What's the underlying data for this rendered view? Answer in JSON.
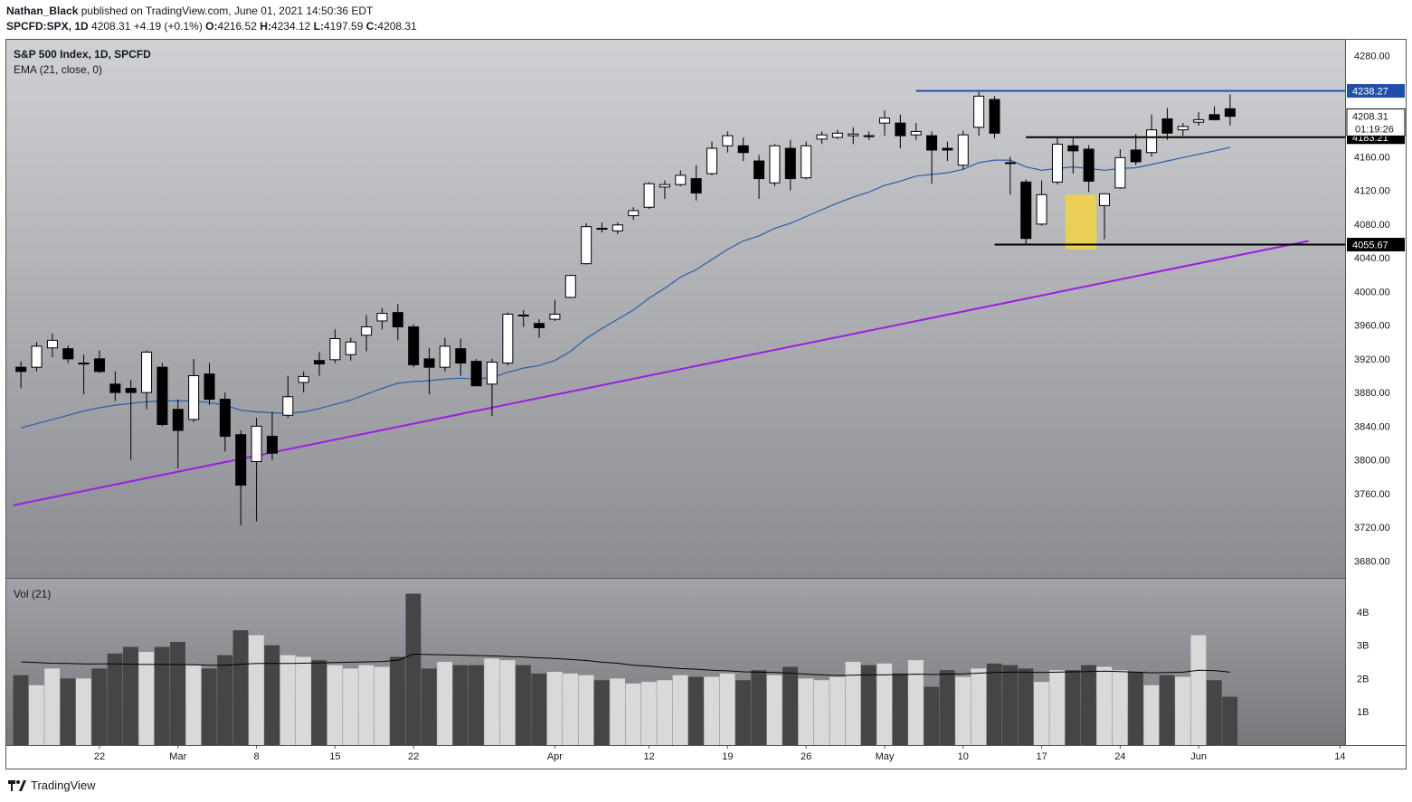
{
  "header": {
    "author": "Nathan_Black",
    "published_text": "published on TradingView.com, June 01, 2021 14:50:36 EDT",
    "symbol_line": "SPCFD:SPX, 1D",
    "last": "4208.31",
    "change": "+4.19 (+0.1%)",
    "o_label": "O:",
    "o": "4216.52",
    "h_label": "H:",
    "h": "4234.12",
    "l_label": "L:",
    "l": "4197.59",
    "c_label": "C:",
    "c": "4208.31"
  },
  "legend": {
    "title": "S&P 500 Index, 1D, SPCFD",
    "ema": "EMA (21, close, 0)",
    "vol": "Vol (21)"
  },
  "footer": {
    "brand": "TradingView"
  },
  "colors": {
    "up_body": "#ffffff",
    "down_body": "#000000",
    "wick": "#000000",
    "ema": "#2a5ea8",
    "trendline": "#9b1fe0",
    "resistance": "#1f4fa8",
    "highlight": "#f0d24a",
    "vol_down": "#454545",
    "vol_up": "#d9d9d9"
  },
  "chart_data": {
    "type": "candlestick",
    "title": "S&P 500 Index, 1D, SPCFD",
    "ylim": [
      3660,
      4300
    ],
    "y_ticks": [
      "4280.00",
      "4240.00",
      "4200.00",
      "4160.00",
      "4120.00",
      "4080.00",
      "4040.00",
      "4000.00",
      "3960.00",
      "3920.00",
      "3880.00",
      "3840.00",
      "3800.00",
      "3760.00",
      "3720.00",
      "3680.00"
    ],
    "x_ticks": [
      {
        "label": "22",
        "i": 5
      },
      {
        "label": "Mar",
        "i": 10
      },
      {
        "label": "8",
        "i": 15
      },
      {
        "label": "15",
        "i": 20
      },
      {
        "label": "22",
        "i": 25
      },
      {
        "label": "Apr",
        "i": 34
      },
      {
        "label": "12",
        "i": 40
      },
      {
        "label": "19",
        "i": 45
      },
      {
        "label": "26",
        "i": 50
      },
      {
        "label": "May",
        "i": 55
      },
      {
        "label": "10",
        "i": 60
      },
      {
        "label": "17",
        "i": 65
      },
      {
        "label": "24",
        "i": 70
      },
      {
        "label": "Jun",
        "i": 75
      },
      {
        "label": "14",
        "i": 84
      }
    ],
    "ohlc": [
      [
        3910,
        3917,
        3885,
        3905
      ],
      [
        3910,
        3940,
        3905,
        3935
      ],
      [
        3933,
        3950,
        3922,
        3942
      ],
      [
        3932,
        3936,
        3915,
        3920
      ],
      [
        3915,
        3925,
        3878,
        3915
      ],
      [
        3920,
        3930,
        3903,
        3905
      ],
      [
        3890,
        3905,
        3870,
        3880
      ],
      [
        3885,
        3895,
        3800,
        3880
      ],
      [
        3880,
        3930,
        3860,
        3928
      ],
      [
        3910,
        3915,
        3840,
        3842
      ],
      [
        3860,
        3872,
        3790,
        3835
      ],
      [
        3848,
        3920,
        3845,
        3900
      ],
      [
        3902,
        3915,
        3865,
        3872
      ],
      [
        3872,
        3880,
        3810,
        3828
      ],
      [
        3830,
        3835,
        3722,
        3770
      ],
      [
        3798,
        3850,
        3727,
        3840
      ],
      [
        3828,
        3857,
        3800,
        3808
      ],
      [
        3853,
        3900,
        3850,
        3875
      ],
      [
        3892,
        3905,
        3880,
        3899
      ],
      [
        3918,
        3928,
        3900,
        3914
      ],
      [
        3919,
        3955,
        3915,
        3944
      ],
      [
        3925,
        3945,
        3918,
        3940
      ],
      [
        3948,
        3972,
        3929,
        3958
      ],
      [
        3965,
        3980,
        3955,
        3974
      ],
      [
        3975,
        3985,
        3942,
        3958
      ],
      [
        3958,
        3961,
        3910,
        3913
      ],
      [
        3920,
        3933,
        3878,
        3910
      ],
      [
        3910,
        3945,
        3905,
        3935
      ],
      [
        3932,
        3944,
        3900,
        3915
      ],
      [
        3917,
        3920,
        3888,
        3888
      ],
      [
        3890,
        3920,
        3852,
        3916
      ],
      [
        3915,
        3975,
        3912,
        3973
      ],
      [
        3972,
        3978,
        3958,
        3971
      ],
      [
        3962,
        3967,
        3945,
        3957
      ],
      [
        3967,
        3990,
        3965,
        3973
      ],
      [
        3993,
        4020,
        3992,
        4019
      ],
      [
        4033,
        4081,
        4032,
        4077
      ],
      [
        4075,
        4082,
        4070,
        4074
      ],
      [
        4072,
        4082,
        4068,
        4079
      ],
      [
        4090,
        4100,
        4085,
        4096
      ],
      [
        4100,
        4130,
        4098,
        4128
      ],
      [
        4124,
        4132,
        4110,
        4127
      ],
      [
        4127,
        4144,
        4125,
        4138
      ],
      [
        4134,
        4150,
        4108,
        4117
      ],
      [
        4140,
        4178,
        4138,
        4170
      ],
      [
        4173,
        4190,
        4165,
        4185
      ],
      [
        4173,
        4183,
        4155,
        4165
      ],
      [
        4155,
        4162,
        4110,
        4134
      ],
      [
        4129,
        4175,
        4125,
        4173
      ],
      [
        4170,
        4180,
        4120,
        4134
      ],
      [
        4135,
        4178,
        4133,
        4173
      ],
      [
        4181,
        4190,
        4175,
        4186
      ],
      [
        4183,
        4192,
        4181,
        4188
      ],
      [
        4185,
        4195,
        4175,
        4187
      ],
      [
        4185,
        4190,
        4180,
        4184
      ],
      [
        4200,
        4215,
        4185,
        4206
      ],
      [
        4200,
        4210,
        4170,
        4185
      ],
      [
        4186,
        4200,
        4180,
        4190
      ],
      [
        4185,
        4190,
        4128,
        4168
      ],
      [
        4170,
        4178,
        4155,
        4168
      ],
      [
        4150,
        4191,
        4145,
        4186
      ],
      [
        4195,
        4237,
        4185,
        4232
      ],
      [
        4228,
        4232,
        4182,
        4188
      ],
      [
        4153,
        4160,
        4115,
        4152
      ],
      [
        4130,
        4133,
        4056,
        4063
      ],
      [
        4080,
        4132,
        4078,
        4115
      ],
      [
        4130,
        4183,
        4127,
        4175
      ],
      [
        4173,
        4182,
        4140,
        4167
      ],
      [
        4169,
        4174,
        4118,
        4131
      ],
      [
        4102,
        4115,
        4062,
        4116
      ],
      [
        4123,
        4169,
        4122,
        4159
      ],
      [
        4168,
        4187,
        4150,
        4154
      ],
      [
        4165,
        4210,
        4160,
        4192
      ],
      [
        4205,
        4218,
        4180,
        4188
      ],
      [
        4192,
        4200,
        4185,
        4196
      ],
      [
        4201,
        4213,
        4197,
        4204
      ],
      [
        4210,
        4220,
        4204,
        4204
      ],
      [
        4217,
        4234,
        4197,
        4208
      ]
    ],
    "ema_21": [
      3838,
      3843,
      3848,
      3853,
      3858,
      3862,
      3865,
      3867,
      3869,
      3870,
      3870,
      3870,
      3868,
      3865,
      3859,
      3857,
      3856,
      3855,
      3857,
      3861,
      3866,
      3871,
      3878,
      3885,
      3891,
      3893,
      3894,
      3896,
      3897,
      3896,
      3898,
      3904,
      3909,
      3912,
      3918,
      3929,
      3944,
      3956,
      3967,
      3978,
      3992,
      4004,
      4017,
      4026,
      4038,
      4050,
      4060,
      4066,
      4075,
      4081,
      4089,
      4097,
      4105,
      4112,
      4118,
      4126,
      4131,
      4137,
      4139,
      4141,
      4145,
      4153,
      4156,
      4156,
      4148,
      4144,
      4146,
      4148,
      4146,
      4144,
      4146,
      4147,
      4151,
      4155,
      4159,
      4163,
      4167,
      4171
    ],
    "volume_ylim": [
      0,
      5000000000
    ],
    "volume_ticks": [
      "4B",
      "3B",
      "2B",
      "1B"
    ],
    "volume": [
      2100000000,
      1800000000,
      2300000000,
      2000000000,
      2000000000,
      2300000000,
      2750000000,
      2950000000,
      2800000000,
      2950000000,
      3100000000,
      2400000000,
      2300000000,
      2700000000,
      3450000000,
      3300000000,
      3000000000,
      2700000000,
      2650000000,
      2550000000,
      2400000000,
      2300000000,
      2400000000,
      2350000000,
      2650000000,
      4550000000,
      2300000000,
      2500000000,
      2400000000,
      2400000000,
      2600000000,
      2550000000,
      2400000000,
      2150000000,
      2200000000,
      2150000000,
      2100000000,
      1950000000,
      2000000000,
      1850000000,
      1900000000,
      1950000000,
      2100000000,
      2050000000,
      2050000000,
      2150000000,
      1950000000,
      2250000000,
      2100000000,
      2350000000,
      2000000000,
      1950000000,
      2050000000,
      2500000000,
      2400000000,
      2450000000,
      2150000000,
      2550000000,
      1750000000,
      2250000000,
      2050000000,
      2300000000,
      2450000000,
      2400000000,
      2300000000,
      1900000000,
      2250000000,
      2250000000,
      2400000000,
      2350000000,
      2250000000,
      2200000000,
      1800000000,
      2100000000,
      2050000000,
      3300000000,
      1950000000,
      1450000000
    ],
    "volume_ma": [
      2500000000,
      2480000000,
      2460000000,
      2450000000,
      2440000000,
      2440000000,
      2440000000,
      2430000000,
      2420000000,
      2420000000,
      2420000000,
      2410000000,
      2400000000,
      2400000000,
      2430000000,
      2450000000,
      2450000000,
      2450000000,
      2460000000,
      2470000000,
      2480000000,
      2490000000,
      2500000000,
      2510000000,
      2550000000,
      2730000000,
      2720000000,
      2710000000,
      2700000000,
      2690000000,
      2680000000,
      2660000000,
      2640000000,
      2620000000,
      2600000000,
      2570000000,
      2540000000,
      2490000000,
      2460000000,
      2400000000,
      2370000000,
      2330000000,
      2300000000,
      2280000000,
      2250000000,
      2230000000,
      2200000000,
      2190000000,
      2180000000,
      2160000000,
      2130000000,
      2110000000,
      2090000000,
      2100000000,
      2110000000,
      2110000000,
      2120000000,
      2130000000,
      2120000000,
      2130000000,
      2140000000,
      2160000000,
      2180000000,
      2190000000,
      2190000000,
      2180000000,
      2190000000,
      2200000000,
      2210000000,
      2220000000,
      2210000000,
      2190000000,
      2170000000,
      2180000000,
      2190000000,
      2250000000,
      2240000000,
      2190000000
    ],
    "annotations": [
      {
        "type": "hline",
        "label": "4238.27",
        "value": 4238.27,
        "from": 57,
        "color": "#1f4fa8"
      },
      {
        "type": "hline",
        "label": "4183.21",
        "value": 4183.21,
        "from": 64,
        "color": "#000000"
      },
      {
        "type": "hline",
        "label": "4055.67",
        "value": 4055.67,
        "from": 62,
        "color": "#000000"
      },
      {
        "type": "trendline",
        "from": [
          -0.5,
          3746
        ],
        "to": [
          82,
          4060
        ],
        "color": "#9b1fe0"
      },
      {
        "type": "highlight",
        "from": 66.5,
        "to": 68.5,
        "low": 4050,
        "high": 4115,
        "color": "#f0d24a"
      }
    ],
    "last_price": {
      "label": "4208.31",
      "countdown": "01:19:26",
      "value": 4208.31
    }
  }
}
